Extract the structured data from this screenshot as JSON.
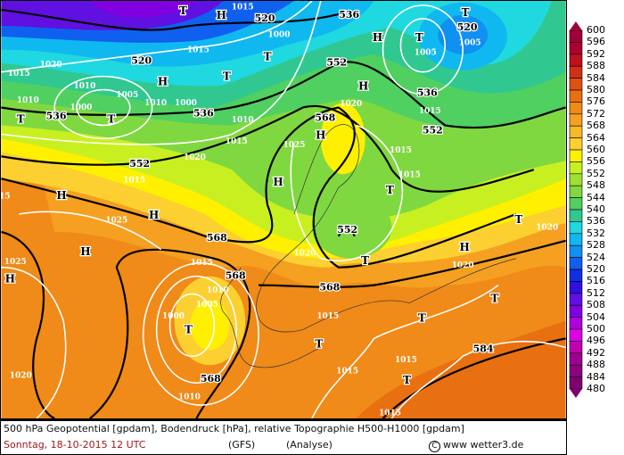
{
  "footer": {
    "line1": "500 hPa Geopotential [gpdam], Bodendruck [hPa], relative Topographie H500-H1000 [gpdam]",
    "date": "Sonntag, 18-10-2015  12 UTC",
    "model": "(GFS)",
    "run": "(Analyse)",
    "copyright": "www wetter3.de"
  },
  "legend": {
    "unit": "gpdam",
    "labels": [
      "600",
      "596",
      "592",
      "588",
      "584",
      "580",
      "576",
      "572",
      "568",
      "564",
      "560",
      "556",
      "552",
      "548",
      "544",
      "540",
      "536",
      "532",
      "528",
      "524",
      "520",
      "516",
      "512",
      "508",
      "504",
      "500",
      "496",
      "492",
      "488",
      "484",
      "480"
    ],
    "colors": [
      "#a0003c",
      "#b0002a",
      "#c01020",
      "#d03018",
      "#e05010",
      "#e87010",
      "#f08a18",
      "#f5a020",
      "#f8b828",
      "#fcd030",
      "#fff000",
      "#c8f020",
      "#a0e030",
      "#80d840",
      "#50d060",
      "#30c890",
      "#20d8e0",
      "#10b8f0",
      "#1090f0",
      "#1060f0",
      "#1030e0",
      "#3010e0",
      "#6010e0",
      "#8000e0",
      "#b000e0",
      "#e000e8",
      "#c000b0",
      "#a00090",
      "#900080",
      "#800070"
    ]
  },
  "map_labels": [
    "T",
    "H",
    "1015",
    "520",
    "536",
    "T",
    "T",
    "520",
    "1005",
    "1005",
    "H",
    "T",
    "1000",
    "1015",
    "520",
    "T",
    "H",
    "1015",
    "1020",
    "1010",
    "1005",
    "1010",
    "T",
    "1000",
    "1010",
    "1000",
    "536",
    "536",
    "T",
    "552",
    "H",
    "536",
    "1015",
    "1010",
    "568",
    "1020",
    "552",
    "1015",
    "1015",
    "H",
    "1025",
    "1020",
    "552",
    "1015",
    "H",
    "1015",
    "T",
    "H",
    "1025",
    "H",
    "568",
    "552",
    "1020",
    "T",
    "H",
    "H",
    "1025",
    "1015",
    "568",
    "1010",
    "1005",
    "1000",
    "T",
    "568",
    "1015",
    "T",
    "T",
    "1015",
    "1015",
    "T",
    "1015",
    "1010",
    "568",
    "1020",
    "584",
    "T",
    "H",
    "1020",
    "T",
    "1020",
    "15"
  ]
}
